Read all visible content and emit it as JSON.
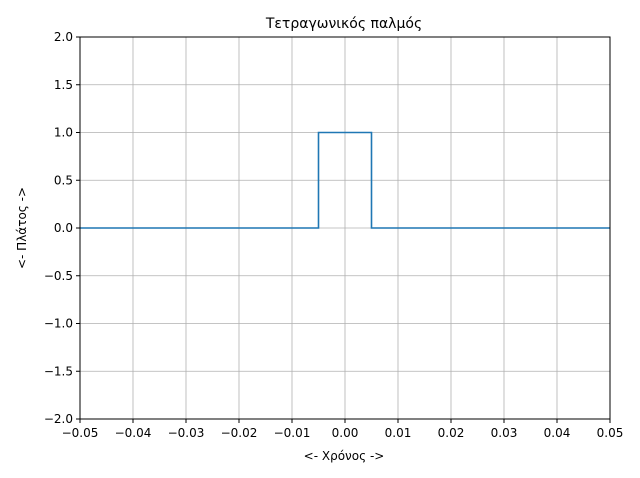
{
  "chart_data": {
    "type": "line",
    "title": "Τετραγωνικός παλμός",
    "xlabel": "<- Χρόνος ->",
    "ylabel": "<- Πλάτος ->",
    "xlim": [
      -0.05,
      0.05
    ],
    "ylim": [
      -2.0,
      2.0
    ],
    "grid": true,
    "xticks": [
      -0.05,
      -0.04,
      -0.03,
      -0.02,
      -0.01,
      0.0,
      0.01,
      0.02,
      0.03,
      0.04,
      0.05
    ],
    "xtick_labels": [
      "−0.05",
      "−0.04",
      "−0.03",
      "−0.02",
      "−0.01",
      "0.00",
      "0.01",
      "0.02",
      "0.03",
      "0.04",
      "0.05"
    ],
    "yticks": [
      -2.0,
      -1.5,
      -1.0,
      -0.5,
      0.0,
      0.5,
      1.0,
      1.5,
      2.0
    ],
    "ytick_labels": [
      "−2.0",
      "−1.5",
      "−1.0",
      "−0.5",
      "0.0",
      "0.5",
      "1.0",
      "1.5",
      "2.0"
    ],
    "series": [
      {
        "color": "#1f77b4",
        "x": [
          -0.05,
          -0.005,
          -0.005,
          0.005,
          0.005,
          0.05
        ],
        "y": [
          0.0,
          0.0,
          1.0,
          1.0,
          0.0,
          0.0
        ]
      }
    ]
  }
}
